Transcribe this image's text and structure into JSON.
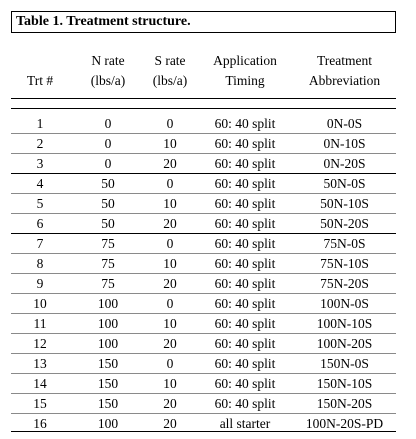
{
  "caption": "Table 1. Treatment structure.",
  "headers": {
    "trt": "Trt #",
    "n_rate_1": "N rate",
    "n_rate_2": "(lbs/a)",
    "s_rate_1": "S rate",
    "s_rate_2": "(lbs/a)",
    "timing_1": "Application",
    "timing_2": "Timing",
    "abbr_1": "Treatment",
    "abbr_2": "Abbreviation"
  },
  "rows": [
    {
      "trt": "1",
      "n": "0",
      "s": "0",
      "timing": "60: 40 split",
      "abbr": "0N-0S"
    },
    {
      "trt": "2",
      "n": "0",
      "s": "10",
      "timing": "60: 40 split",
      "abbr": "0N-10S"
    },
    {
      "trt": "3",
      "n": "0",
      "s": "20",
      "timing": "60: 40 split",
      "abbr": "0N-20S"
    },
    {
      "trt": "4",
      "n": "50",
      "s": "0",
      "timing": "60: 40 split",
      "abbr": "50N-0S"
    },
    {
      "trt": "5",
      "n": "50",
      "s": "10",
      "timing": "60: 40 split",
      "abbr": "50N-10S"
    },
    {
      "trt": "6",
      "n": "50",
      "s": "20",
      "timing": "60: 40 split",
      "abbr": "50N-20S"
    },
    {
      "trt": "7",
      "n": "75",
      "s": "0",
      "timing": "60: 40 split",
      "abbr": "75N-0S"
    },
    {
      "trt": "8",
      "n": "75",
      "s": "10",
      "timing": "60: 40 split",
      "abbr": "75N-10S"
    },
    {
      "trt": "9",
      "n": "75",
      "s": "20",
      "timing": "60: 40 split",
      "abbr": "75N-20S"
    },
    {
      "trt": "10",
      "n": "100",
      "s": "0",
      "timing": "60: 40 split",
      "abbr": "100N-0S"
    },
    {
      "trt": "11",
      "n": "100",
      "s": "10",
      "timing": "60: 40 split",
      "abbr": "100N-10S"
    },
    {
      "trt": "12",
      "n": "100",
      "s": "20",
      "timing": "60: 40 split",
      "abbr": "100N-20S"
    },
    {
      "trt": "13",
      "n": "150",
      "s": "0",
      "timing": "60: 40 split",
      "abbr": "150N-0S"
    },
    {
      "trt": "14",
      "n": "150",
      "s": "10",
      "timing": "60: 40 split",
      "abbr": "150N-10S"
    },
    {
      "trt": "15",
      "n": "150",
      "s": "20",
      "timing": "60: 40 split",
      "abbr": "150N-20S"
    },
    {
      "trt": "16",
      "n": "100",
      "s": "20",
      "timing": "all starter",
      "abbr": "100N-20S-PD"
    }
  ]
}
